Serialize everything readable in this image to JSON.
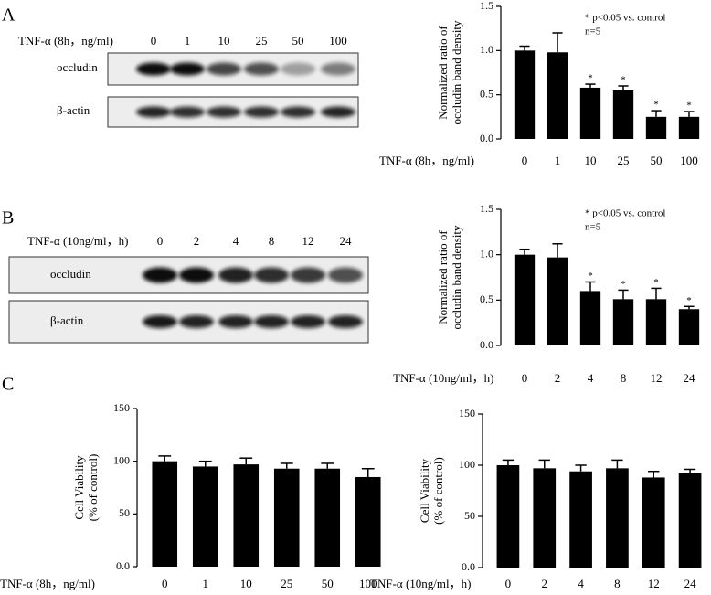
{
  "panels": [
    "A",
    "B",
    "C"
  ],
  "blots": [
    {
      "header": "TNF-α (8h，ng/ml)",
      "lanes": [
        "0",
        "1",
        "10",
        "25",
        "50",
        "100"
      ],
      "rows": [
        "occludin",
        "β-actin"
      ]
    },
    {
      "header": "TNF-α (10ng/ml，h)",
      "lanes": [
        "0",
        "2",
        "4",
        "8",
        "12",
        "24"
      ],
      "rows": [
        "occludin",
        "β-actin"
      ]
    }
  ],
  "chart_data": [
    {
      "type": "bar",
      "ylabel": [
        "Normalized ratio of",
        "occludin band density"
      ],
      "xlabel": "TNF-α (8h，ng/ml)",
      "categories": [
        "0",
        "1",
        "10",
        "25",
        "50",
        "100"
      ],
      "values": [
        1.0,
        0.98,
        0.58,
        0.55,
        0.25,
        0.25
      ],
      "errors": [
        0.05,
        0.22,
        0.04,
        0.05,
        0.07,
        0.06
      ],
      "stars": [
        null,
        null,
        "*",
        "*",
        "*",
        "*"
      ],
      "annotations": [
        "* p<0.05 vs. control",
        "n=5"
      ],
      "color": "#000000",
      "ylim": [
        0,
        1.5
      ],
      "yticks": [
        {
          "value": 0,
          "label": "0.0"
        },
        0.5,
        {
          "value": 1,
          "label": "1.0"
        },
        1.5
      ]
    },
    {
      "type": "bar",
      "ylabel": [
        "Normalized ratio of",
        "occludin band density"
      ],
      "xlabel": "TNF-α (10ng/ml，h)",
      "categories": [
        "0",
        "2",
        "4",
        "8",
        "12",
        "24"
      ],
      "values": [
        1.0,
        0.97,
        0.6,
        0.51,
        0.51,
        0.4
      ],
      "errors": [
        0.06,
        0.15,
        0.1,
        0.1,
        0.12,
        0.03
      ],
      "stars": [
        null,
        null,
        "*",
        "*",
        "*",
        "*"
      ],
      "annotations": [
        "* p<0.05 vs. control",
        "n=5"
      ],
      "color": "#000000",
      "ylim": [
        0,
        1.5
      ],
      "yticks": [
        {
          "value": 0,
          "label": "0.0"
        },
        0.5,
        {
          "value": 1,
          "label": "1.0"
        },
        1.5
      ]
    },
    {
      "type": "bar",
      "ylabel": [
        "Cell Viability",
        "(% of control)"
      ],
      "xlabel": "TNF-α (8h，ng/ml)",
      "categories": [
        "0",
        "1",
        "10",
        "25",
        "50",
        "100"
      ],
      "values": [
        100,
        95,
        97,
        93,
        93,
        85
      ],
      "errors": [
        5,
        5,
        6,
        5,
        5,
        8
      ],
      "color": "#000000",
      "ylim": [
        0,
        150
      ],
      "yticks": [
        {
          "value": 0,
          "label": "0.0"
        },
        50,
        100,
        150
      ]
    },
    {
      "type": "bar",
      "ylabel": [
        "Cell Viability",
        "(% of control)"
      ],
      "xlabel": "TNF-α (10ng/ml，h)",
      "categories": [
        "0",
        "2",
        "4",
        "8",
        "12",
        "24"
      ],
      "values": [
        100,
        97,
        94,
        97,
        88,
        92
      ],
      "errors": [
        5,
        8,
        6,
        8,
        6,
        4
      ],
      "color": "#000000",
      "ylim": [
        0,
        150
      ],
      "yticks": [
        {
          "value": 0,
          "label": "0.0"
        },
        50,
        100,
        150
      ]
    }
  ]
}
